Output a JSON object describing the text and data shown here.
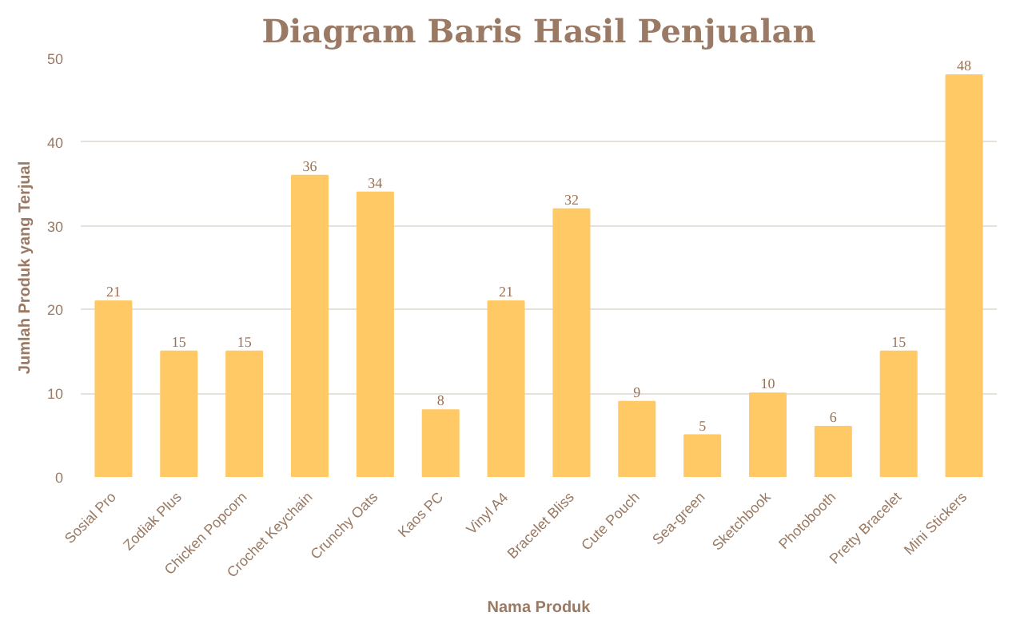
{
  "chart_data": {
    "type": "bar",
    "title": "Diagram Baris Hasil Penjualan",
    "xlabel": "Nama Produk",
    "ylabel": "Jumlah Produk yang Terjual",
    "categories": [
      "Sosial Pro",
      "Zodiak Plus",
      "Chicken Popcorn",
      "Crochet Keychain",
      "Crunchy Oats",
      "Kaos PC",
      "Vinyl A4",
      "Bracelet Bliss",
      "Cute Pouch",
      "Sea-green",
      "Sketchbook",
      "Photobooth",
      "Pretty Bracelet",
      "Mini Stickers"
    ],
    "values": [
      21,
      15,
      15,
      36,
      34,
      8,
      21,
      32,
      9,
      5,
      10,
      6,
      15,
      48
    ],
    "color": "#ffc966",
    "data_labels": true,
    "ylim": [
      0,
      50
    ],
    "yticks": [
      0,
      10,
      20,
      30,
      40,
      50
    ],
    "grid": "y"
  }
}
